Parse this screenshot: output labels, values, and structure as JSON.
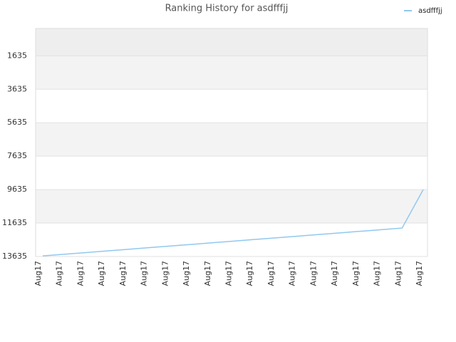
{
  "chart_data": {
    "type": "line",
    "title": "Ranking History for asdfffjj",
    "categories": [
      "Aug17",
      "Aug17",
      "Aug17",
      "Aug17",
      "Aug17",
      "Aug17",
      "Aug17",
      "Aug17",
      "Aug17",
      "Aug17",
      "Aug17",
      "Aug17",
      "Aug17",
      "Aug17",
      "Aug17",
      "Aug17",
      "Aug17",
      "Aug17",
      "Aug17"
    ],
    "series": [
      {
        "name": "asdfffjj",
        "color": "#91c8f0",
        "values": [
          13600,
          13502,
          13404,
          13306,
          13208,
          13110,
          13012,
          12914,
          12816,
          12718,
          12620,
          12522,
          12424,
          12326,
          12228,
          12130,
          12032,
          11934,
          9635
        ]
      }
    ],
    "ylim": [
      13635,
      0
    ],
    "yticks": [
      1635,
      3635,
      5635,
      7635,
      9635,
      11635,
      13635
    ],
    "grid": true,
    "legend": "top-right"
  }
}
